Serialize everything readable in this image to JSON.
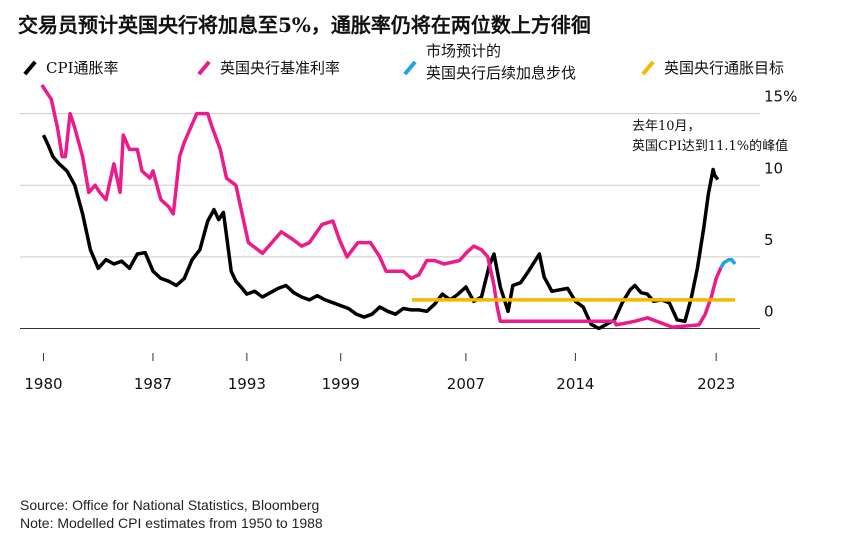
{
  "chart_data": {
    "type": "line",
    "title": "交易员预计英国央行将加息至5%，通胀率仍将在两位数上方徘徊",
    "annotation": [
      "去年10月，",
      "英国CPI达到11.1%的峰值"
    ],
    "source": "Source: Office for National Statistics, Bloomberg",
    "note": "Note: Modelled CPI estimates from 1950 to 1988",
    "xlim": [
      1978.5,
      2025.8
    ],
    "xticks": [
      1980,
      1987,
      1993,
      1999,
      2007,
      2014,
      2023
    ],
    "ylim": [
      -1.5,
      16.3
    ],
    "yticks": [
      0,
      5,
      10,
      {
        "value": 15,
        "label": "15%"
      }
    ],
    "grid": true,
    "series": [
      {
        "name": "CPI通胀率",
        "color": "#000000",
        "x": [
          1980.0,
          1980.3,
          1980.6,
          1981.0,
          1981.5,
          1982.0,
          1982.5,
          1983.0,
          1983.5,
          1984.0,
          1984.5,
          1985.0,
          1985.5,
          1986.0,
          1986.5,
          1987.0,
          1987.5,
          1988.0,
          1988.5,
          1989.0,
          1989.5,
          1990.0,
          1990.5,
          1990.9,
          1991.2,
          1991.5,
          1991.7,
          1992.0,
          1992.3,
          1992.7,
          1993.0,
          1993.5,
          1994.0,
          1994.5,
          1995.0,
          1995.5,
          1996.0,
          1996.5,
          1997.0,
          1997.5,
          1998.0,
          1998.5,
          1999.0,
          1999.5,
          2000.0,
          2000.5,
          2001.0,
          2001.5,
          2002.0,
          2002.5,
          2003.0,
          2003.5,
          2004.0,
          2004.5,
          2005.0,
          2005.5,
          2006.0,
          2006.5,
          2007.0,
          2007.5,
          2008.0,
          2008.5,
          2008.8,
          2009.2,
          2009.7,
          2010.0,
          2010.5,
          2011.0,
          2011.7,
          2012.0,
          2012.5,
          2013.0,
          2013.5,
          2014.0,
          2014.5,
          2015.0,
          2015.5,
          2016.0,
          2016.5,
          2017.0,
          2017.5,
          2017.8,
          2018.2,
          2018.6,
          2019.0,
          2019.5,
          2020.0,
          2020.5,
          2021.0,
          2021.4,
          2021.8,
          2022.2,
          2022.5,
          2022.8,
          2022.9,
          2023.1
        ],
        "values": [
          13.5,
          12.8,
          12.0,
          11.5,
          11.0,
          10.0,
          8.0,
          5.5,
          4.2,
          4.8,
          4.5,
          4.7,
          4.2,
          5.2,
          5.3,
          4.0,
          3.5,
          3.3,
          3.0,
          3.5,
          4.8,
          5.5,
          7.5,
          8.3,
          7.6,
          8.1,
          6.5,
          4.0,
          3.3,
          2.8,
          2.4,
          2.6,
          2.2,
          2.5,
          2.8,
          3.0,
          2.5,
          2.2,
          2.0,
          2.3,
          2.0,
          1.8,
          1.6,
          1.4,
          1.0,
          0.8,
          1.0,
          1.5,
          1.2,
          1.0,
          1.4,
          1.3,
          1.3,
          1.2,
          1.7,
          2.4,
          2.0,
          2.4,
          2.9,
          1.9,
          2.2,
          4.4,
          5.2,
          2.9,
          1.2,
          3.0,
          3.2,
          4.0,
          5.2,
          3.6,
          2.6,
          2.7,
          2.8,
          1.9,
          1.5,
          0.3,
          0.0,
          0.3,
          0.6,
          1.8,
          2.7,
          3.0,
          2.5,
          2.4,
          1.9,
          2.0,
          1.8,
          0.6,
          0.5,
          2.1,
          4.2,
          7.0,
          9.4,
          11.1,
          10.7,
          10.4
        ]
      },
      {
        "name": "英国央行基准利率",
        "color": "#ec1b8c",
        "x": [
          1979.9,
          1980.5,
          1980.9,
          1981.2,
          1981.4,
          1981.7,
          1982.0,
          1982.5,
          1982.9,
          1983.3,
          1983.6,
          1984.0,
          1984.5,
          1984.9,
          1985.1,
          1985.5,
          1986.0,
          1986.3,
          1986.8,
          1987.0,
          1987.5,
          1988.0,
          1988.3,
          1988.7,
          1989.0,
          1989.4,
          1989.8,
          1990.5,
          1990.8,
          1991.3,
          1991.7,
          1992.3,
          1992.8,
          1993.1,
          1994.0,
          1994.8,
          1995.2,
          1995.9,
          1996.5,
          1997.0,
          1997.8,
          1998.5,
          1998.9,
          1999.4,
          2000.1,
          2000.9,
          2001.5,
          2001.9,
          2003.0,
          2003.5,
          2004.0,
          2004.5,
          2005.0,
          2005.6,
          2006.6,
          2007.0,
          2007.5,
          2008.0,
          2008.4,
          2008.8,
          2009.0,
          2009.2,
          2016.5,
          2016.6,
          2017.8,
          2018.6,
          2020.2,
          2021.9,
          2022.3,
          2022.7,
          2023.0,
          2023.3
        ],
        "values": [
          17,
          16,
          14,
          12,
          12,
          15,
          14,
          12,
          9.5,
          10,
          9.5,
          9.0,
          11.5,
          9.5,
          13.5,
          12.5,
          12.5,
          11,
          10.5,
          11,
          9,
          8.5,
          8,
          12,
          13,
          14,
          15,
          15,
          14,
          12.5,
          10.5,
          10,
          7.5,
          6,
          5.25,
          6.25,
          6.75,
          6.25,
          5.75,
          6,
          7.25,
          7.5,
          6.25,
          5,
          6,
          6,
          5,
          4,
          4,
          3.5,
          3.75,
          4.75,
          4.75,
          4.5,
          4.75,
          5.25,
          5.75,
          5.5,
          5.0,
          3.0,
          1.5,
          0.5,
          0.5,
          0.25,
          0.5,
          0.75,
          0.1,
          0.25,
          1,
          2.25,
          3.5,
          4.25
        ]
      },
      {
        "name": "市场预计的\n英国央行后续加息步伐",
        "color": "#1fa3e8",
        "x": [
          2023.3,
          2023.5,
          2023.8,
          2024.0,
          2024.2
        ],
        "values": [
          4.25,
          4.6,
          4.8,
          4.8,
          4.5
        ]
      },
      {
        "name": "英国央行通胀目标",
        "color": "#f5b800",
        "x": [
          2003.55,
          2024.2
        ],
        "values": [
          2,
          2
        ]
      }
    ]
  }
}
